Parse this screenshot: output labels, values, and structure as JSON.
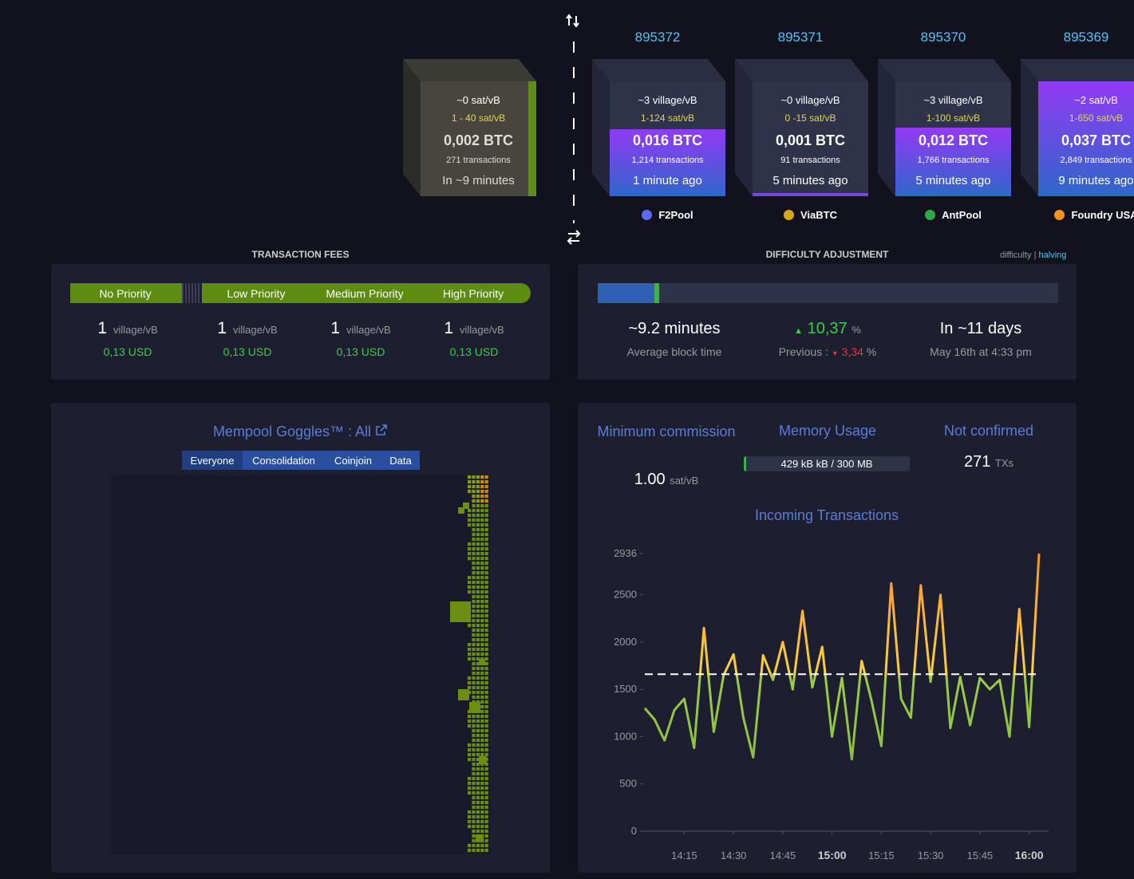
{
  "mempool_block": {
    "fee": "~0 sat/vB",
    "range": "1 - 40 sat/vB",
    "total": "0,002 BTC",
    "transactions": "271 transactions",
    "eta": "In ~9 minutes"
  },
  "blocks": [
    {
      "height": "895372",
      "fee": "~3 village/vB",
      "range": "1-124 sat/vB",
      "total": "0,016 BTC",
      "transactions": "1,214 transactions",
      "time": "1 minute ago",
      "pool": "F2Pool"
    },
    {
      "height": "895371",
      "fee": "~0 village/vB",
      "range": "0 -15 sat/vB",
      "total": "0,001 BTC",
      "transactions": "91 transactions",
      "time": "5 minutes ago",
      "pool": "ViaBTC"
    },
    {
      "height": "895370",
      "fee": "~3 village/vB",
      "range": "1-100 sat/vB",
      "total": "0,012 BTC",
      "transactions": "1,766 transactions",
      "time": "5 minutes ago",
      "pool": "AntPool"
    },
    {
      "height": "895369",
      "fee": "~2 sat/vB",
      "range": "1-650 sat/vB",
      "total": "0,037 BTC",
      "transactions": "2,849 transactions",
      "time": "9 minutes ago",
      "pool": "Foundry USA"
    }
  ],
  "fees": {
    "title": "TRANSACTION FEES",
    "levels": [
      {
        "label": "No Priority",
        "value": 1,
        "unit": "village/vB",
        "usd": "0,13 USD"
      },
      {
        "label": "Low Priority",
        "value": 1,
        "unit": "village/vB",
        "usd": "0,13 USD"
      },
      {
        "label": "Medium Priority",
        "value": 1,
        "unit": "village/vB",
        "usd": "0,13 USD"
      },
      {
        "label": "High Priority",
        "value": 1,
        "unit": "village/vB",
        "usd": "0,13 USD"
      }
    ]
  },
  "difficulty": {
    "title": "DIFFICULTY ADJUSTMENT",
    "link_difficulty": "difficulty",
    "link_halving": "halving",
    "block_time": "~9.2 minutes",
    "block_time_label": "Average block time",
    "change": "10,37",
    "change_unit": "%",
    "previous_label": "Previous :",
    "previous": "3,34",
    "previous_unit": "%",
    "remaining": "In ~11 days",
    "date": "May 16th at 4:33 pm"
  },
  "goggles": {
    "title": "Mempool Goggles™ : All",
    "tabs": [
      "Everyone",
      "Consolidation",
      "Coinjoin",
      "Data"
    ]
  },
  "stats": {
    "min_fee_label": "Minimum commission",
    "min_fee": "1.00",
    "min_fee_unit": "sat/vB",
    "memory_label": "Memory Usage",
    "memory": "429 kB kB / 300 MB",
    "unconfirmed_label": "Not confirmed",
    "unconfirmed": "271",
    "unconfirmed_unit": "TXs"
  },
  "chart_data": {
    "type": "line",
    "title": "Incoming Transactions",
    "categories": [
      null,
      null,
      null,
      null,
      "14:15",
      null,
      null,
      null,
      null,
      "14:30",
      null,
      null,
      null,
      null,
      "14:45",
      null,
      null,
      null,
      null,
      "15:00",
      null,
      null,
      null,
      null,
      "15:15",
      null,
      null,
      null,
      null,
      "15:30",
      null,
      null,
      null,
      null,
      "15:45",
      null,
      null,
      null,
      null,
      "16:00",
      null
    ],
    "values": [
      1300,
      1180,
      960,
      1280,
      1400,
      880,
      2150,
      1050,
      1650,
      1870,
      1200,
      780,
      1860,
      1600,
      2000,
      1500,
      2330,
      1520,
      1950,
      1000,
      1620,
      760,
      1800,
      1380,
      900,
      2620,
      1400,
      1200,
      2600,
      1580,
      2500,
      1090,
      1630,
      1120,
      1620,
      1500,
      1600,
      1000,
      2350,
      1100,
      2936
    ],
    "average": 1660,
    "ylim": [
      0,
      2936
    ],
    "yticks": [
      0,
      500,
      1000,
      1500,
      2000,
      2500,
      2936
    ]
  }
}
